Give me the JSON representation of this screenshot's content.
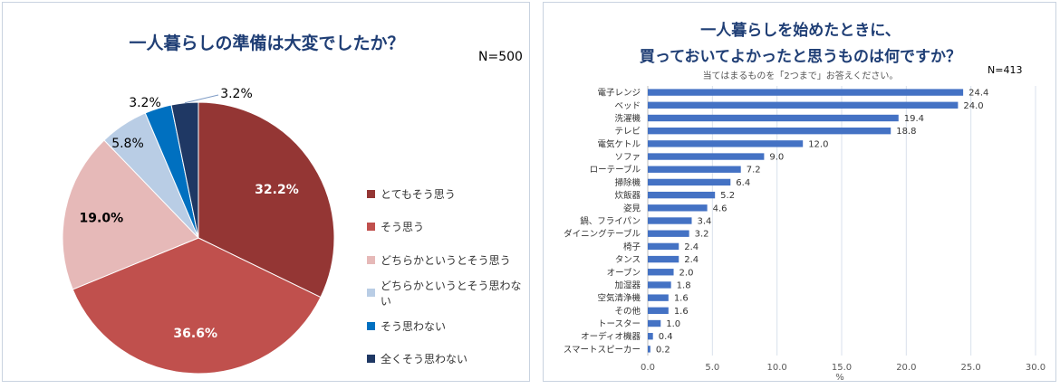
{
  "pie_panel": {
    "title": "一人暮らしの準備は大変でしたか？",
    "n_label": "N=500"
  },
  "bar_panel": {
    "title_line1": "一人暮らしを始めたときに、",
    "title_line2": "買っておいてよかったと思うものは何ですか？",
    "subtitle": "当てはまるものを「2つまで」お答えください。",
    "n_label": "N=413"
  },
  "colors": {
    "pie": [
      "#943634",
      "#c0504d",
      "#e6b9b8",
      "#b9cde5",
      "#0070c0",
      "#1f3864"
    ],
    "bar": "#4472c4",
    "title": "#1f3e75"
  },
  "chart_data": [
    {
      "type": "pie",
      "title": "一人暮らしの準備は大変でしたか？",
      "labels": [
        "とてもそう思う",
        "そう思う",
        "どちらかというとそう思う",
        "どちらかというとそう思わない",
        "そう思わない",
        "全くそう思わない"
      ],
      "values": [
        32.2,
        36.6,
        19.0,
        5.8,
        3.2,
        3.2
      ],
      "value_labels": [
        "32.2%",
        "36.6%",
        "19.0%",
        "5.8%",
        "3.2%",
        "3.2%"
      ],
      "legend_position": "right"
    },
    {
      "type": "bar",
      "orientation": "horizontal",
      "title": "一人暮らしを始めたときに、買っておいてよかったと思うものは何ですか？",
      "categories": [
        "電子レンジ",
        "ベッド",
        "洗濯機",
        "テレビ",
        "電気ケトル",
        "ソファ",
        "ローテーブル",
        "掃除機",
        "炊飯器",
        "姿見",
        "鍋、フライパン",
        "ダイニングテーブル",
        "椅子",
        "タンス",
        "オーブン",
        "加湿器",
        "空気清浄機",
        "その他",
        "トースター",
        "オーディオ機器",
        "スマートスピーカー"
      ],
      "values": [
        24.4,
        24.0,
        19.4,
        18.8,
        12.0,
        9.0,
        7.2,
        6.4,
        5.2,
        4.6,
        3.4,
        3.2,
        2.4,
        2.4,
        2.0,
        1.8,
        1.6,
        1.6,
        1.0,
        0.4,
        0.2
      ],
      "value_labels": [
        "24.4",
        "24.0",
        "19.4",
        "18.8",
        "12.0",
        "9.0",
        "7.2",
        "6.4",
        "5.2",
        "4.6",
        "3.4",
        "3.2",
        "2.4",
        "2.4",
        "2.0",
        "1.8",
        "1.6",
        "1.6",
        "1.0",
        "0.4",
        "0.2"
      ],
      "xlabel": "%",
      "xlim": [
        0,
        30
      ],
      "xticks": [
        0,
        5,
        10,
        15,
        20,
        25,
        30
      ],
      "xtick_labels": [
        "0.0",
        "5.0",
        "10.0",
        "15.0",
        "20.0",
        "25.0",
        "30.0"
      ],
      "grid": true
    }
  ]
}
